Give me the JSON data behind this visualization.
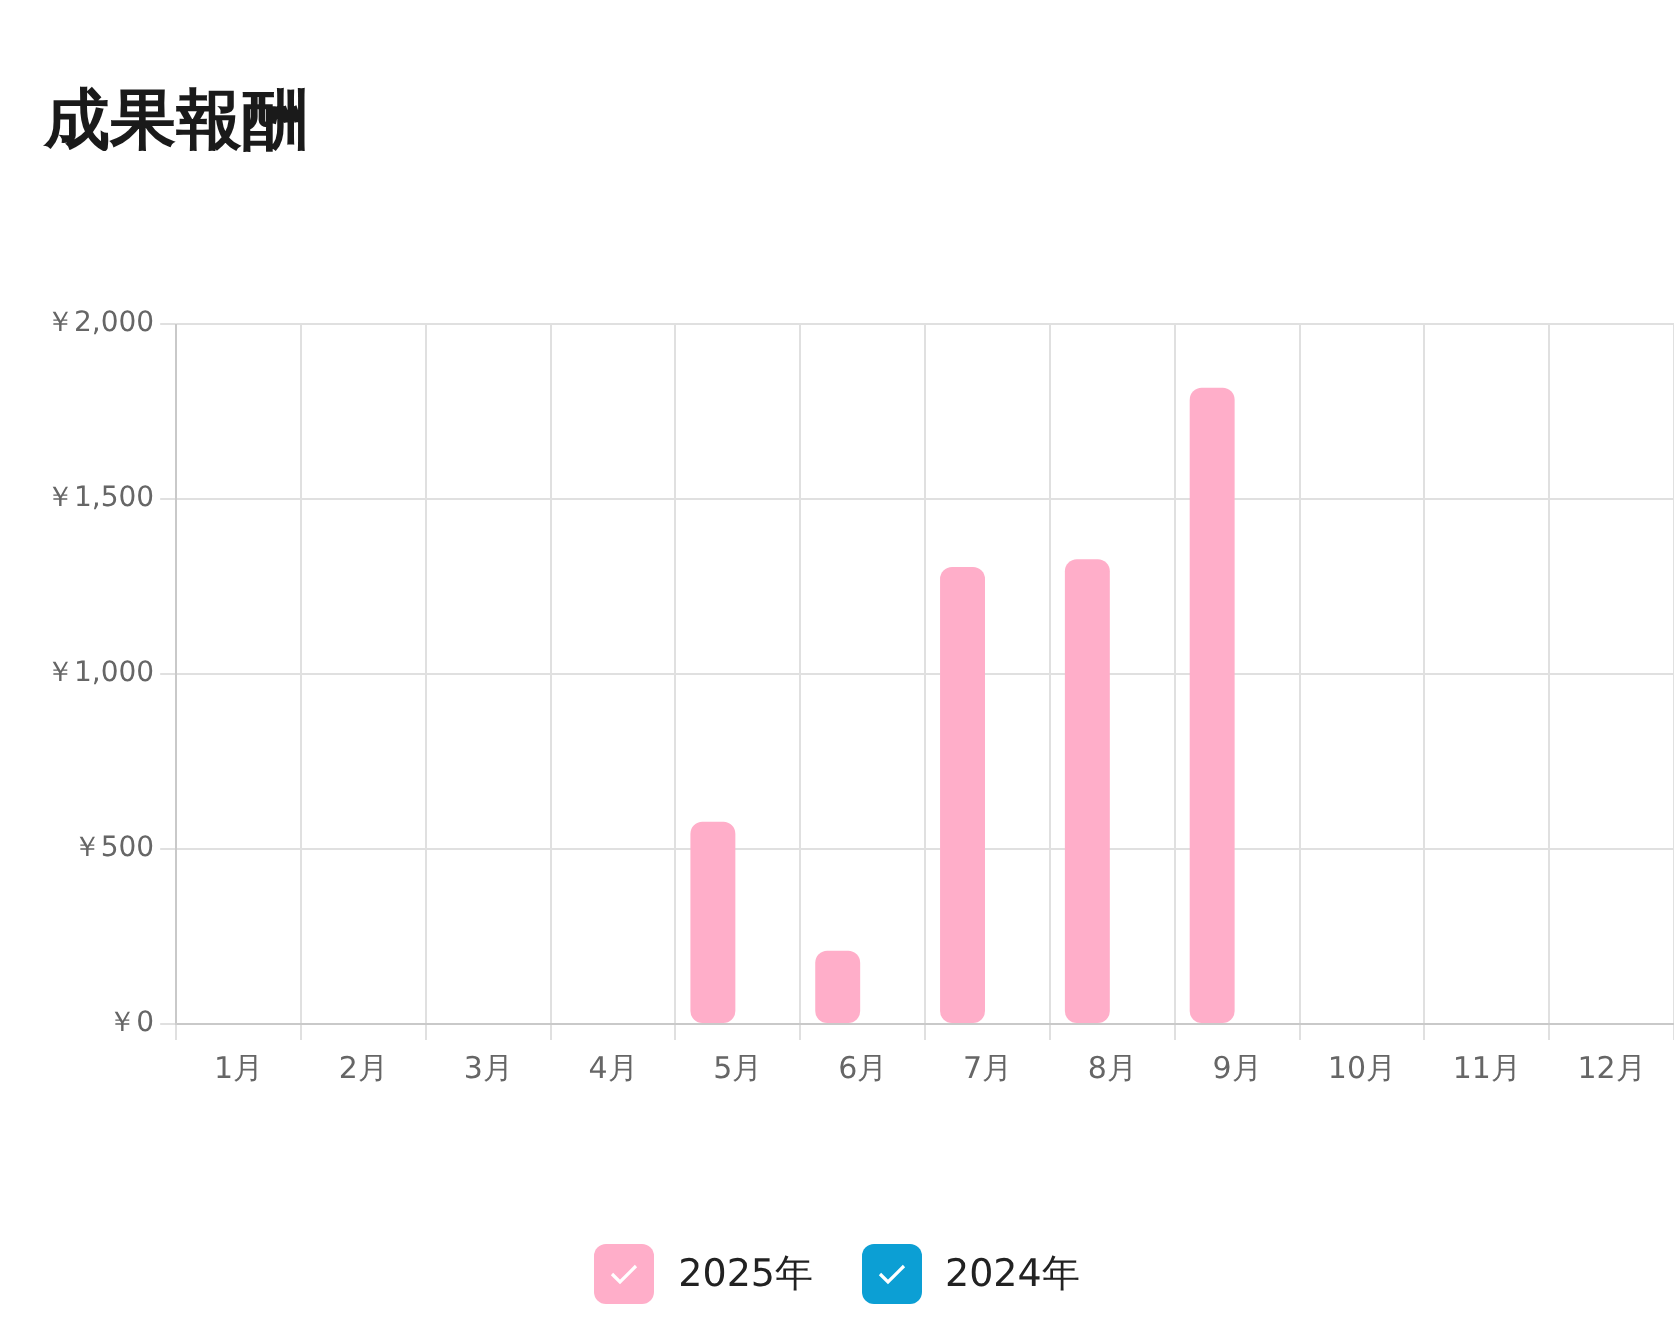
{
  "chart_data": {
    "type": "bar",
    "title": "成果報酬",
    "categories": [
      "1月",
      "2月",
      "3月",
      "4月",
      "5月",
      "6月",
      "7月",
      "8月",
      "9月",
      "10月",
      "11月",
      "12月"
    ],
    "series": [
      {
        "name": "2025年",
        "color": "#ffaec9",
        "values": [
          0,
          0,
          0,
          0,
          578,
          209,
          1306,
          1328,
          1818,
          0,
          0,
          0
        ]
      },
      {
        "name": "2024年",
        "color": "#0c9fd4",
        "values": [
          0,
          0,
          0,
          0,
          0,
          0,
          0,
          0,
          0,
          0,
          0,
          0
        ]
      }
    ],
    "ylim": [
      0,
      2000
    ],
    "yticks": [
      {
        "value": 0,
        "label": "￥0"
      },
      {
        "value": 500,
        "label": "￥500"
      },
      {
        "value": 1000,
        "label": "￥1,000"
      },
      {
        "value": 1500,
        "label": "￥1,500"
      },
      {
        "value": 2000,
        "label": "￥2,000"
      }
    ],
    "grid": true,
    "legend": "bottom"
  }
}
